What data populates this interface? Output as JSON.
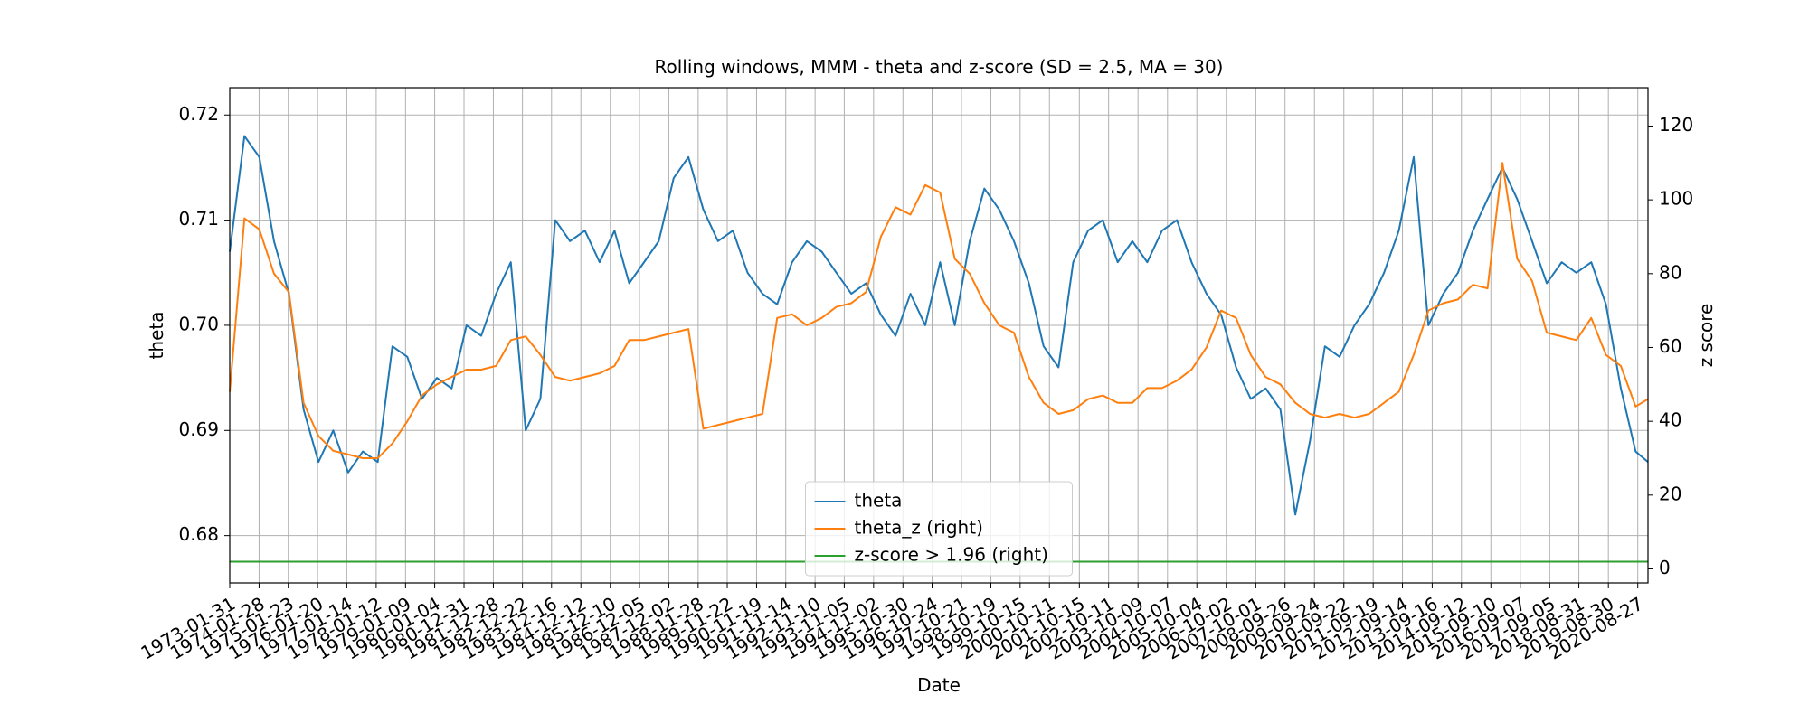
{
  "chart_data": {
    "type": "line",
    "title": "Rolling windows, MMM - theta and z-score (SD = 2.5, MA = 30)",
    "x_label": "Date",
    "y_label": "theta",
    "y2_label": "z score",
    "grid": true,
    "legend": "lower center",
    "xlim": [
      "1973-01-31",
      "2020-12-31"
    ],
    "xticks": [
      "1973-01-31",
      "1974-01-28",
      "1975-01-23",
      "1976-01-20",
      "1977-01-14",
      "1978-01-12",
      "1979-01-09",
      "1980-01-04",
      "1980-12-31",
      "1981-12-28",
      "1982-12-22",
      "1983-12-16",
      "1984-12-12",
      "1985-12-10",
      "1986-12-05",
      "1987-12-02",
      "1988-11-28",
      "1989-11-22",
      "1990-11-19",
      "1991-11-14",
      "1992-11-10",
      "1993-11-05",
      "1994-11-02",
      "1995-10-30",
      "1996-10-24",
      "1997-10-21",
      "1998-10-19",
      "1999-10-15",
      "2000-10-11",
      "2001-10-15",
      "2002-10-11",
      "2003-10-09",
      "2004-10-07",
      "2005-10-04",
      "2006-10-02",
      "2007-10-01",
      "2008-09-26",
      "2009-09-24",
      "2010-09-22",
      "2011-09-19",
      "2012-09-14",
      "2013-09-16",
      "2014-09-12",
      "2015-09-10",
      "2016-09-07",
      "2017-09-05",
      "2018-08-31",
      "2019-08-30",
      "2020-08-27"
    ],
    "ylim": [
      0.6755,
      0.7226
    ],
    "yticks": [
      0.68,
      0.69,
      {
        "value": 0.7,
        "label": "0.70"
      },
      0.71,
      0.72
    ],
    "y2lim": [
      -3.8,
      130.4
    ],
    "y2ticks": [
      0,
      20,
      40,
      60,
      80,
      100,
      120
    ],
    "x": [
      "1973-01-31",
      "1973-07-31",
      "1974-01-31",
      "1974-07-31",
      "1975-01-31",
      "1975-07-31",
      "1976-01-31",
      "1976-07-31",
      "1977-01-31",
      "1977-07-31",
      "1978-01-31",
      "1978-07-31",
      "1979-01-31",
      "1979-07-31",
      "1980-01-31",
      "1980-07-31",
      "1981-01-31",
      "1981-07-31",
      "1982-01-31",
      "1982-07-31",
      "1983-01-31",
      "1983-07-31",
      "1984-01-31",
      "1984-07-31",
      "1985-01-31",
      "1985-07-31",
      "1986-01-31",
      "1986-07-31",
      "1987-01-31",
      "1987-07-31",
      "1988-01-31",
      "1988-07-31",
      "1989-01-31",
      "1989-07-31",
      "1990-01-31",
      "1990-07-31",
      "1991-01-31",
      "1991-07-31",
      "1992-01-31",
      "1992-07-31",
      "1993-01-31",
      "1993-07-31",
      "1994-01-31",
      "1994-07-31",
      "1995-01-31",
      "1995-07-31",
      "1996-01-31",
      "1996-07-31",
      "1997-01-31",
      "1997-07-31",
      "1998-01-31",
      "1998-07-31",
      "1999-01-31",
      "1999-07-31",
      "2000-01-31",
      "2000-07-31",
      "2001-01-31",
      "2001-07-31",
      "2002-01-31",
      "2002-07-31",
      "2003-01-31",
      "2003-07-31",
      "2004-01-31",
      "2004-07-31",
      "2005-01-31",
      "2005-07-31",
      "2006-01-31",
      "2006-07-31",
      "2007-01-31",
      "2007-07-31",
      "2008-01-31",
      "2008-07-31",
      "2009-01-31",
      "2009-07-31",
      "2010-01-31",
      "2010-07-31",
      "2011-01-31",
      "2011-07-31",
      "2012-01-31",
      "2012-07-31",
      "2013-01-31",
      "2013-07-31",
      "2014-01-31",
      "2014-07-31",
      "2015-01-31",
      "2015-07-31",
      "2016-01-31",
      "2016-07-31",
      "2017-01-31",
      "2017-07-31",
      "2018-01-31",
      "2018-07-31",
      "2019-01-31",
      "2019-07-31",
      "2020-01-31",
      "2020-07-31",
      "2020-12-31"
    ],
    "series": [
      {
        "name": "theta",
        "color": "#1f77b4",
        "axis": "y",
        "values": [
          0.707,
          0.718,
          0.716,
          0.708,
          0.703,
          0.692,
          0.687,
          0.69,
          0.686,
          0.688,
          0.687,
          0.698,
          0.697,
          0.693,
          0.695,
          0.694,
          0.7,
          0.699,
          0.703,
          0.706,
          0.69,
          0.693,
          0.71,
          0.708,
          0.709,
          0.706,
          0.709,
          0.704,
          0.706,
          0.708,
          0.714,
          0.716,
          0.711,
          0.708,
          0.709,
          0.705,
          0.703,
          0.702,
          0.706,
          0.708,
          0.707,
          0.705,
          0.703,
          0.704,
          0.701,
          0.699,
          0.703,
          0.7,
          0.706,
          0.7,
          0.708,
          0.713,
          0.711,
          0.708,
          0.704,
          0.698,
          0.696,
          0.706,
          0.709,
          0.71,
          0.706,
          0.708,
          0.706,
          0.709,
          0.71,
          0.706,
          0.703,
          0.701,
          0.696,
          0.693,
          0.694,
          0.692,
          0.682,
          0.689,
          0.698,
          0.697,
          0.7,
          0.702,
          0.705,
          0.709,
          0.716,
          0.7,
          0.703,
          0.705,
          0.709,
          0.712,
          0.715,
          0.712,
          0.708,
          0.704,
          0.706,
          0.705,
          0.706,
          0.702,
          0.694,
          0.688,
          0.687
        ]
      },
      {
        "name": "theta_z (right)",
        "color": "#ff7f0e",
        "axis": "y2",
        "values": [
          48,
          95,
          92,
          80,
          75,
          45,
          36,
          32,
          31,
          30,
          30,
          34,
          40,
          47,
          50,
          52,
          54,
          54,
          55,
          62,
          63,
          58,
          52,
          51,
          52,
          53,
          55,
          62,
          62,
          63,
          64,
          65,
          38,
          39,
          40,
          41,
          42,
          68,
          69,
          66,
          68,
          71,
          72,
          75,
          90,
          98,
          96,
          104,
          102,
          84,
          80,
          72,
          66,
          64,
          52,
          45,
          42,
          43,
          46,
          47,
          45,
          45,
          49,
          49,
          51,
          54,
          60,
          70,
          68,
          58,
          52,
          50,
          45,
          42,
          41,
          42,
          41,
          42,
          45,
          48,
          58,
          70,
          72,
          73,
          77,
          76,
          110,
          84,
          78,
          64,
          63,
          62,
          68,
          58,
          55,
          44,
          46
        ]
      },
      {
        "name": "z-score > 1.96 (right)",
        "color": "#2ca02c",
        "axis": "y2",
        "x": [
          "1973-01-31",
          "2020-12-31"
        ],
        "values": [
          1.96,
          1.96
        ]
      }
    ]
  }
}
